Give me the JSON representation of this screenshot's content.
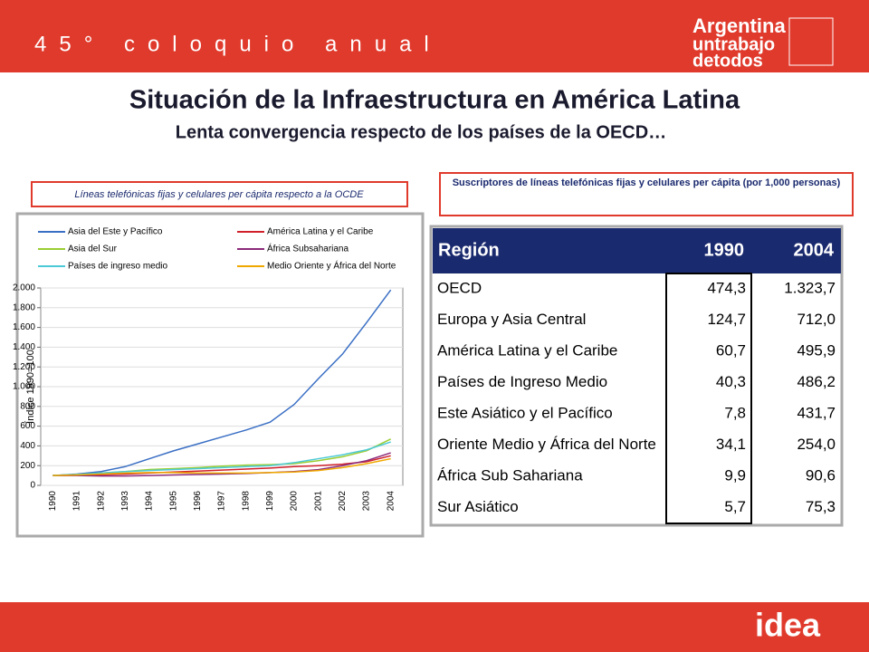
{
  "header": {
    "event": "45° coloquio anual",
    "logo": [
      "Argentina",
      "untrabajo",
      "detodos"
    ]
  },
  "title": "Situación de la Infraestructura en América Latina",
  "subtitle": "Lenta convergencia respecto de los países de la OECD…",
  "chart_data": {
    "type": "line",
    "caption": "Líneas telefónicas fijas y celulares per cápita respecto a la OCDE",
    "y_label": "Índice 1990=100",
    "categories": [
      "1990",
      "1991",
      "1992",
      "1993",
      "1994",
      "1995",
      "1996",
      "1997",
      "1998",
      "1999",
      "2000",
      "2001",
      "2002",
      "2003",
      "2004"
    ],
    "ylim": [
      0,
      2000
    ],
    "yticks": [
      0,
      200,
      400,
      600,
      800,
      {
        "value": 1000,
        "label": "1.000"
      },
      {
        "value": 1200,
        "label": "1.200"
      },
      {
        "value": 1400,
        "label": "1.400"
      },
      {
        "value": 1600,
        "label": "1.600"
      },
      {
        "value": 1800,
        "label": "1.800"
      },
      {
        "value": 2000,
        "label": "2.000"
      }
    ],
    "grid": true,
    "series": [
      {
        "name": "Asia del Este y Pacífico",
        "color": "#3a6fc4",
        "values": [
          100,
          115,
          140,
          190,
          270,
          350,
          420,
          490,
          560,
          640,
          820,
          1080,
          1330,
          1650,
          1980
        ]
      },
      {
        "name": "América Latina y el Caribe",
        "color": "#d0202a",
        "values": [
          100,
          103,
          108,
          115,
          125,
          135,
          145,
          155,
          165,
          175,
          190,
          200,
          215,
          240,
          300
        ]
      },
      {
        "name": "Asia del Sur",
        "color": "#9acd32",
        "values": [
          100,
          110,
          125,
          140,
          160,
          170,
          180,
          195,
          205,
          210,
          220,
          250,
          290,
          350,
          470
        ]
      },
      {
        "name": "África Subsahariana",
        "color": "#8b2a7a",
        "values": [
          100,
          100,
          95,
          95,
          100,
          105,
          110,
          115,
          120,
          130,
          140,
          160,
          200,
          250,
          330
        ]
      },
      {
        "name": "Países de ingreso medio",
        "color": "#4cc9d6",
        "values": [
          100,
          110,
          125,
          140,
          150,
          160,
          170,
          180,
          190,
          200,
          230,
          270,
          310,
          360,
          440
        ]
      },
      {
        "name": "Medio Oriente y África del Norte",
        "color": "#f0a800",
        "values": [
          100,
          105,
          115,
          125,
          130,
          130,
          125,
          125,
          125,
          130,
          135,
          150,
          180,
          220,
          270
        ]
      }
    ]
  },
  "table": {
    "caption": "Suscriptores de líneas telefónicas fijas y celulares per cápita (por 1,000 personas)",
    "header": [
      "Región",
      "1990",
      "2004"
    ],
    "rows": [
      [
        "OECD",
        "474,3",
        "1.323,7"
      ],
      [
        "Europa y Asia Central",
        "124,7",
        "712,0"
      ],
      [
        "América Latina y el Caribe",
        "60,7",
        "495,9"
      ],
      [
        "Países de Ingreso Medio",
        "40,3",
        "486,2"
      ],
      [
        "Este Asiático y el Pacífico",
        "7,8",
        "431,7"
      ],
      [
        "Oriente Medio y África del Norte",
        "34,1",
        "254,0"
      ],
      [
        "África Sub Sahariana",
        "9,9",
        "90,6"
      ],
      [
        "Sur Asiático",
        "5,7",
        "75,3"
      ]
    ]
  },
  "footer": {
    "brand": "idea"
  }
}
